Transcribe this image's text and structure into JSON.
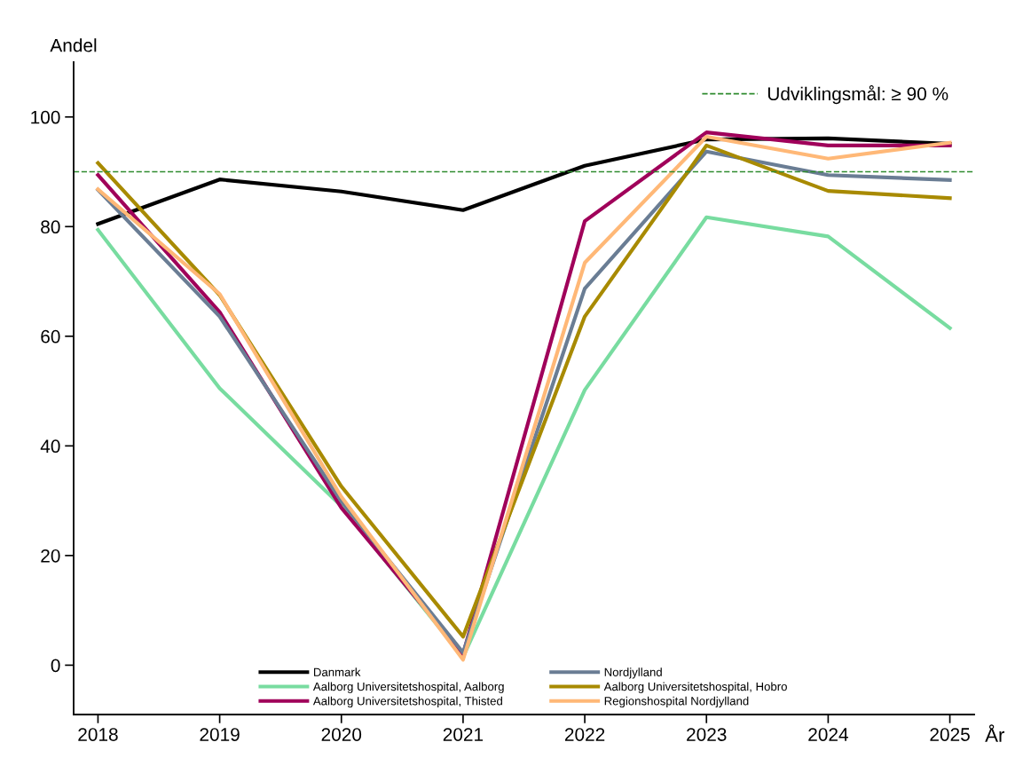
{
  "chart_data": {
    "type": "line",
    "xlabel": "År",
    "ylabel": "Andel",
    "x": [
      2018,
      2019,
      2020,
      2021,
      2022,
      2023,
      2024,
      2025
    ],
    "xlim": [
      2017.8,
      2025.2
    ],
    "xticks": [
      2018,
      2019,
      2020,
      2021,
      2022,
      2023,
      2024,
      2025
    ],
    "ylim": [
      -9,
      110
    ],
    "yticks": [
      0,
      20,
      40,
      60,
      80,
      100
    ],
    "grid": false,
    "legend": "bottom",
    "marker": "none",
    "line_style": "solid",
    "ref_lines": [
      {
        "axis": "y",
        "value": 90,
        "label": "Udviklingsmål: ≥ 90 %",
        "color": "#2e8b2e",
        "line_style": "dashed"
      }
    ],
    "series": [
      {
        "name": "Danmark",
        "color": "#000000",
        "values": [
          80.5,
          88.6,
          86.4,
          83.0,
          91.1,
          95.9,
          96.1,
          95.1
        ]
      },
      {
        "name": "Aalborg Universitetshospital, Aalborg",
        "color": "#78dca0",
        "values": [
          79.4,
          50.5,
          29.0,
          1.5,
          50.2,
          81.7,
          78.2,
          61.5
        ]
      },
      {
        "name": "Aalborg Universitetshospital, Thisted",
        "color": "#a0005a",
        "values": [
          89.4,
          64.4,
          28.7,
          2.0,
          81.0,
          97.2,
          94.8,
          94.8
        ]
      },
      {
        "name": "Nordjylland",
        "color": "#6a7d94",
        "values": [
          86.7,
          63.6,
          29.9,
          2.3,
          68.7,
          93.7,
          89.4,
          88.5
        ]
      },
      {
        "name": "Aalborg Universitetshospital, Hobro",
        "color": "#a88a00",
        "values": [
          91.6,
          67.5,
          32.6,
          5.2,
          63.6,
          94.8,
          86.5,
          85.2
        ]
      },
      {
        "name": "Regionshospital Nordjylland",
        "color": "#ffb877",
        "values": [
          86.8,
          67.7,
          30.7,
          1.0,
          73.4,
          96.4,
          92.4,
          95.3
        ]
      }
    ]
  }
}
